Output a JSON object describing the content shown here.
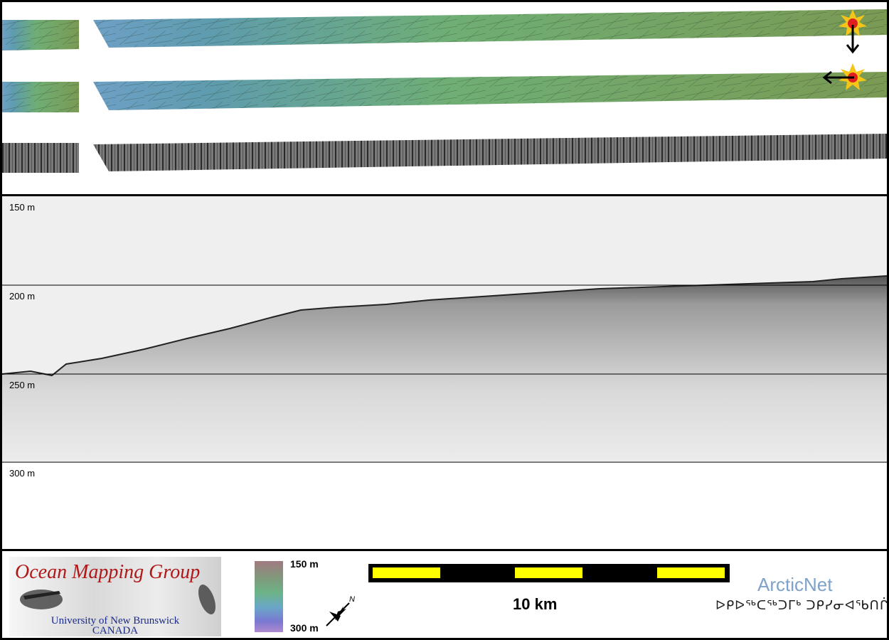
{
  "profile": {
    "depth_labels": [
      "150 m",
      "200 m",
      "250 m",
      "300 m"
    ]
  },
  "logo": {
    "title": "Ocean Mapping Group",
    "university": "University of New Brunswick",
    "country": "CANADA"
  },
  "colorbar": {
    "top_label": "150 m",
    "bottom_label": "300 m"
  },
  "north_arrow": {
    "label": "N"
  },
  "scale_bar": {
    "label": "10 km",
    "colors": [
      "#ffff00",
      "#000000"
    ]
  },
  "partner": {
    "name": "ArcticNet",
    "inuktitut": "ᐅᑭᐅᖅᑕᖅᑐᒥᒃ ᑐᑭᓯᓂᐊᖃᑎᒌᑦ"
  },
  "colors": {
    "sun_outer": "#f5c518",
    "sun_inner": "#e02020",
    "arrow": "#000000"
  }
}
